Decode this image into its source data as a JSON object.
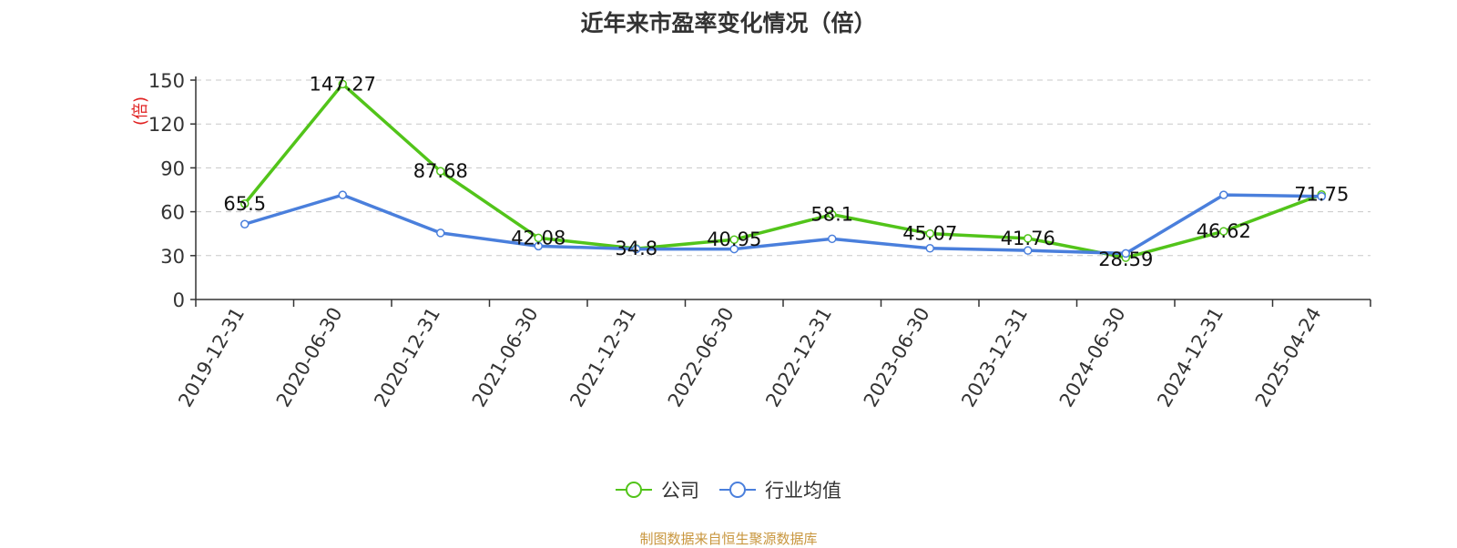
{
  "title": "近年来市盈率变化情况（倍）",
  "source_note": "制图数据来自恒生聚源数据库",
  "chart_data": {
    "type": "line",
    "title": "近年来市盈率变化情况（倍）",
    "xlabel": "",
    "ylabel": "(倍)",
    "ylim": [
      0,
      150
    ],
    "yticks": [
      0,
      30,
      60,
      90,
      120,
      150
    ],
    "grid": true,
    "legend_position": "bottom",
    "categories": [
      "2019-12-31",
      "2020-06-30",
      "2020-12-31",
      "2021-06-30",
      "2021-12-31",
      "2022-06-30",
      "2022-12-31",
      "2023-06-30",
      "2023-12-31",
      "2024-06-30",
      "2024-12-31",
      "2025-04-24"
    ],
    "series": [
      {
        "name": "公司",
        "color": "#52c41a",
        "values": [
          65.5,
          147.27,
          87.68,
          42.08,
          34.8,
          40.95,
          58.1,
          45.07,
          41.76,
          28.59,
          46.62,
          71.75
        ],
        "labels": [
          "65.5",
          "147.27",
          "87.68",
          "42.08",
          "34.8",
          "40.95",
          "58.1",
          "45.07",
          "41.76",
          "28.59",
          "46.62",
          "71.75"
        ]
      },
      {
        "name": "行业均值",
        "color": "#4a7fdc",
        "values": [
          51.5,
          71.5,
          45.5,
          36.5,
          34.5,
          34.5,
          41.5,
          35,
          33.5,
          31.5,
          71.5,
          70.5
        ]
      }
    ]
  }
}
